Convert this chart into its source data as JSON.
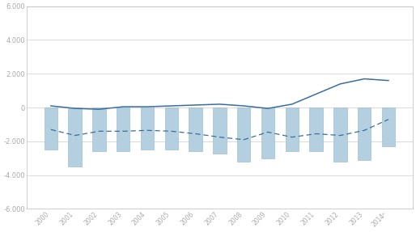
{
  "years": [
    2000,
    2001,
    2002,
    2003,
    2004,
    2005,
    2006,
    2007,
    2008,
    2009,
    2010,
    2011,
    2012,
    2013,
    2014
  ],
  "year_labels": [
    "2000",
    "2001",
    "2002",
    "2003",
    "2004",
    "2005",
    "2006",
    "2007",
    "2008",
    "2009",
    "2010",
    "2011",
    "2012",
    "2013",
    "2014ᵖ"
  ],
  "bars": [
    -2500,
    -3500,
    -2600,
    -2600,
    -2500,
    -2500,
    -2600,
    -2700,
    -3200,
    -3000,
    -2600,
    -2600,
    -3200,
    -3100,
    -2300
  ],
  "solid_line": [
    100,
    -50,
    -100,
    50,
    50,
    100,
    150,
    200,
    100,
    -50,
    200,
    800,
    1400,
    1700,
    1600
  ],
  "dashed_line": [
    -1300,
    -1650,
    -1400,
    -1400,
    -1350,
    -1400,
    -1550,
    -1750,
    -1900,
    -1450,
    -1750,
    -1550,
    -1650,
    -1350,
    -700
  ],
  "bar_color": "#b3cfe0",
  "bar_edge_color": "#90b8d0",
  "solid_color": "#3a6e9e",
  "dashed_color": "#3a6e9e",
  "ylim": [
    -6000,
    6000
  ],
  "yticks": [
    -6000,
    -4000,
    -2000,
    0,
    2000,
    4000,
    6000
  ],
  "grid_color": "#d5d5d5",
  "bg_color": "#ffffff",
  "axis_color": "#bbbbbb",
  "bar_width": 0.55
}
